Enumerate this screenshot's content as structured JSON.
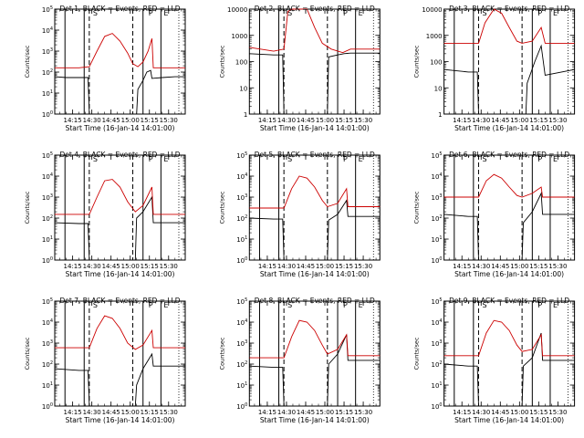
{
  "panels": [
    {
      "title": "Det 1, BLACK = Events, RED = LLD",
      "ylabel": "Counts/sec",
      "xlabel": "Start Time (16-Jan-14 14:01:00)"
    },
    {
      "title": "Det 2, BLACK = Events, RED = LLD",
      "ylabel": "Counts/sec",
      "xlabel": "Start Time (16-Jan-14 14:01:00)"
    },
    {
      "title": "Det 3, BLACK = Events, RED = LLD",
      "ylabel": "Counts/sec",
      "xlabel": "Start Time (16-Jan-14 14:01:00)"
    },
    {
      "title": "Det 4, BLACK = Events, RED = LLD",
      "ylabel": "Counts/sec",
      "xlabel": "Start Time (16-Jan-14 14:01:00)"
    },
    {
      "title": "Det 5, BLACK = Events, RED = LLD",
      "ylabel": "Counts/sec",
      "xlabel": "Start Time (16-Jan-14 14:01:00)"
    },
    {
      "title": "Det 6, BLACK = Events, RED = LLD",
      "ylabel": "Counts/sec",
      "xlabel": "Start Time (16-Jan-14 14:01:00)"
    },
    {
      "title": "Det 7, BLACK = Events, RED = LLD",
      "ylabel": "Counts/sec",
      "xlabel": "Start Time (16-Jan-14 14:01:00)"
    },
    {
      "title": "Det 8, BLACK = Events, RED = LLD",
      "ylabel": "Counts/sec",
      "xlabel": "Start Time (16-Jan-14 14:01:00)"
    },
    {
      "title": "Det 9, BLACK = Events, RED = LLD",
      "ylabel": "Counts/sec",
      "xlabel": "Start Time (16-Jan-14 14:01:00)"
    }
  ],
  "chart_data": [
    {
      "type": "line",
      "title": "Det 1, BLACK = Events, RED = LLD",
      "xlabel": "Start Time (16-Jan-14 14:01:00)",
      "ylabel": "Counts/sec",
      "xlim": [
        "14:01",
        "15:43"
      ],
      "ylim": [
        1,
        100000
      ],
      "yscale": "log",
      "xticks": [
        "14:15",
        "14:30",
        "14:45",
        "15:00",
        "15:15",
        "15:30"
      ],
      "yticks": [
        "10^0",
        "10^1",
        "10^2",
        "10^3",
        "10^4",
        "10^5"
      ],
      "annotations": [
        "S",
        "P",
        "E"
      ],
      "solid_vlines": [
        "14:09",
        "14:24",
        "15:10",
        "15:24"
      ],
      "dashed_vlines": [
        "14:28",
        "15:02"
      ],
      "dotted_vlines": [
        "15:38"
      ],
      "series": [
        {
          "name": "BLACK = Events",
          "color": "#000000",
          "x": [
            "14:01",
            "14:10",
            "14:20",
            "14:27",
            "14:28",
            "15:05",
            "15:06",
            "15:10",
            "15:13",
            "15:16",
            "15:17",
            "15:25",
            "15:35",
            "15:43"
          ],
          "y": [
            60,
            55,
            55,
            55,
            1,
            1,
            15,
            40,
            100,
            120,
            50,
            55,
            60,
            60
          ]
        },
        {
          "name": "RED = LLD",
          "color": "#cc0000",
          "x": [
            "14:01",
            "14:20",
            "14:28",
            "14:34",
            "14:40",
            "14:46",
            "14:52",
            "14:58",
            "15:02",
            "15:06",
            "15:10",
            "15:14",
            "15:17",
            "15:18",
            "15:30",
            "15:43"
          ],
          "y": [
            160,
            160,
            180,
            1000,
            5000,
            7000,
            3000,
            800,
            250,
            180,
            300,
            1000,
            4000,
            160,
            160,
            160
          ]
        }
      ]
    },
    {
      "type": "line",
      "title": "Det 2, BLACK = Events, RED = LLD",
      "xlabel": "Start Time (16-Jan-14 14:01:00)",
      "ylabel": "Counts/sec",
      "xlim": [
        "14:01",
        "15:43"
      ],
      "ylim": [
        1,
        10000
      ],
      "yscale": "log",
      "xticks": [
        "14:15",
        "14:30",
        "14:45",
        "15:00",
        "15:15",
        "15:30"
      ],
      "yticks": [
        "1",
        "10",
        "100",
        "1000",
        "10000"
      ],
      "annotations": [
        "S",
        "P",
        "E"
      ],
      "solid_vlines": [
        "14:09",
        "14:24",
        "15:10",
        "15:24"
      ],
      "dashed_vlines": [
        "14:28",
        "15:02"
      ],
      "dotted_vlines": [
        "15:38"
      ],
      "series": [
        {
          "name": "BLACK = Events",
          "color": "#000000",
          "x": [
            "14:01",
            "14:20",
            "14:27",
            "14:28",
            "15:02",
            "15:03",
            "15:10",
            "15:15",
            "15:20",
            "15:43"
          ],
          "y": [
            200,
            180,
            180,
            1,
            1,
            150,
            180,
            200,
            210,
            210
          ]
        },
        {
          "name": "RED = LLD",
          "color": "#cc0000",
          "x": [
            "14:01",
            "14:20",
            "14:28",
            "14:31",
            "14:34",
            "14:46",
            "14:52",
            "14:58",
            "15:05",
            "15:14",
            "15:20",
            "15:43"
          ],
          "y": [
            350,
            250,
            300,
            8000,
            10000,
            10000,
            2000,
            500,
            300,
            220,
            300,
            300
          ]
        }
      ]
    },
    {
      "type": "line",
      "title": "Det 3, BLACK = Events, RED = LLD",
      "xlabel": "Start Time (16-Jan-14 14:01:00)",
      "ylabel": "Counts/sec",
      "xlim": [
        "14:01",
        "15:43"
      ],
      "ylim": [
        1,
        10000
      ],
      "yscale": "log",
      "xticks": [
        "14:15",
        "14:30",
        "14:45",
        "15:00",
        "15:15",
        "15:30"
      ],
      "yticks": [
        "1",
        "10",
        "100",
        "1000",
        "10000"
      ],
      "annotations": [
        "S",
        "P",
        "E"
      ],
      "solid_vlines": [
        "14:09",
        "14:24",
        "15:10",
        "15:24"
      ],
      "dashed_vlines": [
        "14:28",
        "15:02"
      ],
      "dotted_vlines": [
        "15:38"
      ],
      "series": [
        {
          "name": "BLACK = Events",
          "color": "#000000",
          "x": [
            "14:01",
            "14:20",
            "14:27",
            "14:28",
            "15:05",
            "15:06",
            "15:12",
            "15:17",
            "15:20",
            "15:43"
          ],
          "y": [
            50,
            40,
            40,
            1,
            1,
            15,
            100,
            400,
            30,
            50
          ]
        },
        {
          "name": "RED = LLD",
          "color": "#cc0000",
          "x": [
            "14:01",
            "14:28",
            "14:33",
            "14:40",
            "14:46",
            "14:52",
            "14:58",
            "15:02",
            "15:10",
            "15:17",
            "15:20",
            "15:43"
          ],
          "y": [
            500,
            500,
            3000,
            10000,
            7000,
            2000,
            600,
            500,
            600,
            2000,
            500,
            500
          ]
        }
      ]
    },
    {
      "type": "line",
      "title": "Det 4, BLACK = Events, RED = LLD",
      "xlabel": "Start Time (16-Jan-14 14:01:00)",
      "ylabel": "Counts/sec",
      "xlim": [
        "14:01",
        "15:43"
      ],
      "ylim": [
        1,
        100000
      ],
      "yscale": "log",
      "xticks": [
        "14:15",
        "14:30",
        "14:45",
        "15:00",
        "15:15",
        "15:30"
      ],
      "yticks": [
        "10^0",
        "10^1",
        "10^2",
        "10^3",
        "10^4",
        "10^5"
      ],
      "annotations": [
        "S",
        "P",
        "E"
      ],
      "solid_vlines": [
        "14:09",
        "14:24",
        "15:10",
        "15:24"
      ],
      "dashed_vlines": [
        "14:28",
        "15:02"
      ],
      "dotted_vlines": [
        "15:38"
      ],
      "series": [
        {
          "name": "BLACK = Events",
          "color": "#000000",
          "x": [
            "14:01",
            "14:20",
            "14:27",
            "14:28",
            "15:04",
            "15:05",
            "15:10",
            "15:17",
            "15:18",
            "15:43"
          ],
          "y": [
            60,
            55,
            55,
            1,
            1,
            100,
            200,
            1000,
            60,
            60
          ]
        },
        {
          "name": "RED = LLD",
          "color": "#cc0000",
          "x": [
            "14:01",
            "14:28",
            "14:34",
            "14:40",
            "14:46",
            "14:52",
            "14:58",
            "15:04",
            "15:10",
            "15:17",
            "15:18",
            "15:43"
          ],
          "y": [
            150,
            150,
            1000,
            6000,
            7000,
            3000,
            600,
            200,
            400,
            3000,
            150,
            150
          ]
        }
      ]
    },
    {
      "type": "line",
      "title": "Det 5, BLACK = Events, RED = LLD",
      "xlabel": "Start Time (16-Jan-14 14:01:00)",
      "ylabel": "Counts/sec",
      "xlim": [
        "14:01",
        "15:43"
      ],
      "ylim": [
        1,
        100000
      ],
      "yscale": "log",
      "xticks": [
        "14:15",
        "14:30",
        "14:45",
        "15:00",
        "15:15",
        "15:30"
      ],
      "yticks": [
        "10^0",
        "10^1",
        "10^2",
        "10^3",
        "10^4",
        "10^5"
      ],
      "annotations": [
        "S",
        "P",
        "E"
      ],
      "solid_vlines": [
        "14:09",
        "14:24",
        "15:10",
        "15:24"
      ],
      "dashed_vlines": [
        "14:28",
        "15:02"
      ],
      "dotted_vlines": [
        "15:38"
      ],
      "series": [
        {
          "name": "BLACK = Events",
          "color": "#000000",
          "x": [
            "14:01",
            "14:20",
            "14:27",
            "14:28",
            "15:02",
            "15:03",
            "15:10",
            "15:17",
            "15:18",
            "15:43"
          ],
          "y": [
            100,
            90,
            90,
            1,
            1,
            80,
            150,
            700,
            120,
            120
          ]
        },
        {
          "name": "RED = LLD",
          "color": "#cc0000",
          "x": [
            "14:01",
            "14:28",
            "14:34",
            "14:40",
            "14:46",
            "14:52",
            "14:58",
            "15:02",
            "15:10",
            "15:17",
            "15:18",
            "15:43"
          ],
          "y": [
            300,
            300,
            2500,
            10000,
            8000,
            3000,
            700,
            350,
            500,
            2500,
            350,
            350
          ]
        }
      ]
    },
    {
      "type": "line",
      "title": "Det 6, BLACK = Events, RED = LLD",
      "xlabel": "Start Time (16-Jan-14 14:01:00)",
      "ylabel": "Counts/sec",
      "xlim": [
        "14:01",
        "15:43"
      ],
      "ylim": [
        1,
        100000
      ],
      "yscale": "log",
      "xticks": [
        "14:15",
        "14:30",
        "14:45",
        "15:00",
        "15:15",
        "15:30"
      ],
      "yticks": [
        "10^0",
        "10^1",
        "10^2",
        "10^3",
        "10^4",
        "10^5"
      ],
      "annotations": [
        "S",
        "P",
        "E"
      ],
      "solid_vlines": [
        "14:09",
        "14:24",
        "15:10",
        "15:24"
      ],
      "dashed_vlines": [
        "14:28",
        "15:02"
      ],
      "dotted_vlines": [
        "15:38"
      ],
      "series": [
        {
          "name": "BLACK = Events",
          "color": "#000000",
          "x": [
            "14:01",
            "14:20",
            "14:27",
            "14:28",
            "15:02",
            "15:03",
            "15:10",
            "15:17",
            "15:18",
            "15:43"
          ],
          "y": [
            150,
            120,
            120,
            1,
            1,
            60,
            200,
            1500,
            150,
            150
          ]
        },
        {
          "name": "RED = LLD",
          "color": "#cc0000",
          "x": [
            "14:01",
            "14:28",
            "14:34",
            "14:40",
            "14:46",
            "14:52",
            "14:58",
            "15:02",
            "15:10",
            "15:17",
            "15:18",
            "15:43"
          ],
          "y": [
            1000,
            1000,
            6000,
            12000,
            8000,
            3000,
            1200,
            1000,
            1500,
            3000,
            1000,
            1000
          ]
        }
      ]
    },
    {
      "type": "line",
      "title": "Det 7, BLACK = Events, RED = LLD",
      "xlabel": "Start Time (16-Jan-14 14:01:00)",
      "ylabel": "Counts/sec",
      "xlim": [
        "14:01",
        "15:43"
      ],
      "ylim": [
        1,
        100000
      ],
      "yscale": "log",
      "xticks": [
        "14:15",
        "14:30",
        "14:45",
        "15:00",
        "15:15",
        "15:30"
      ],
      "yticks": [
        "10^0",
        "10^1",
        "10^2",
        "10^3",
        "10^4",
        "10^5"
      ],
      "annotations": [
        "S",
        "P",
        "E"
      ],
      "solid_vlines": [
        "14:09",
        "14:24",
        "15:10",
        "15:24"
      ],
      "dashed_vlines": [
        "14:28",
        "15:02"
      ],
      "dotted_vlines": [
        "15:38"
      ],
      "series": [
        {
          "name": "BLACK = Events",
          "color": "#000000",
          "x": [
            "14:01",
            "14:20",
            "14:27",
            "14:28",
            "15:04",
            "15:05",
            "15:10",
            "15:17",
            "15:18",
            "15:43"
          ],
          "y": [
            60,
            50,
            50,
            1,
            1,
            10,
            60,
            300,
            80,
            80
          ]
        },
        {
          "name": "RED = LLD",
          "color": "#cc0000",
          "x": [
            "14:01",
            "14:28",
            "14:34",
            "14:40",
            "14:46",
            "14:52",
            "14:58",
            "15:04",
            "15:10",
            "15:17",
            "15:18",
            "15:43"
          ],
          "y": [
            600,
            600,
            5000,
            20000,
            15000,
            5000,
            1000,
            500,
            800,
            4000,
            600,
            600
          ]
        }
      ]
    },
    {
      "type": "line",
      "title": "Det 8, BLACK = Events, RED = LLD",
      "xlabel": "Start Time (16-Jan-14 14:01:00)",
      "ylabel": "Counts/sec",
      "xlim": [
        "14:01",
        "15:43"
      ],
      "ylim": [
        1,
        100000
      ],
      "yscale": "log",
      "xticks": [
        "14:15",
        "14:30",
        "14:45",
        "15:00",
        "15:15",
        "15:30"
      ],
      "yticks": [
        "10^0",
        "10^1",
        "10^2",
        "10^3",
        "10^4",
        "10^5"
      ],
      "annotations": [
        "S",
        "P",
        "E"
      ],
      "solid_vlines": [
        "14:09",
        "14:24",
        "15:10",
        "15:24"
      ],
      "dashed_vlines": [
        "14:28",
        "15:02"
      ],
      "dotted_vlines": [
        "15:38"
      ],
      "series": [
        {
          "name": "BLACK = Events",
          "color": "#000000",
          "x": [
            "14:01",
            "14:20",
            "14:27",
            "14:28",
            "15:02",
            "15:03",
            "15:10",
            "15:17",
            "15:18",
            "15:43"
          ],
          "y": [
            80,
            70,
            70,
            1,
            1,
            100,
            300,
            2500,
            150,
            150
          ]
        },
        {
          "name": "RED = LLD",
          "color": "#cc0000",
          "x": [
            "14:01",
            "14:28",
            "14:34",
            "14:40",
            "14:46",
            "14:52",
            "14:58",
            "15:02",
            "15:10",
            "15:17",
            "15:18",
            "15:43"
          ],
          "y": [
            200,
            200,
            2000,
            12000,
            10000,
            4000,
            800,
            300,
            500,
            2500,
            250,
            250
          ]
        }
      ]
    },
    {
      "type": "line",
      "title": "Det 9, BLACK = Events, RED = LLD",
      "xlabel": "Start Time (16-Jan-14 14:01:00)",
      "ylabel": "Counts/sec",
      "xlim": [
        "14:01",
        "15:43"
      ],
      "ylim": [
        1,
        100000
      ],
      "yscale": "log",
      "xticks": [
        "14:15",
        "14:30",
        "14:45",
        "15:00",
        "15:15",
        "15:30"
      ],
      "yticks": [
        "10^0",
        "10^1",
        "10^2",
        "10^3",
        "10^4",
        "10^5"
      ],
      "annotations": [
        "S",
        "P",
        "E"
      ],
      "solid_vlines": [
        "14:09",
        "14:24",
        "15:10",
        "15:24"
      ],
      "dashed_vlines": [
        "14:28",
        "15:02"
      ],
      "dotted_vlines": [
        "15:38"
      ],
      "series": [
        {
          "name": "BLACK = Events",
          "color": "#000000",
          "x": [
            "14:01",
            "14:20",
            "14:27",
            "14:28",
            "15:02",
            "15:03",
            "15:10",
            "15:17",
            "15:18",
            "15:43"
          ],
          "y": [
            100,
            80,
            80,
            1,
            1,
            80,
            200,
            3000,
            150,
            150
          ]
        },
        {
          "name": "RED = LLD",
          "color": "#cc0000",
          "x": [
            "14:01",
            "14:28",
            "14:34",
            "14:40",
            "14:46",
            "14:52",
            "14:58",
            "15:02",
            "15:10",
            "15:17",
            "15:18",
            "15:43"
          ],
          "y": [
            250,
            250,
            3000,
            12000,
            10000,
            4000,
            800,
            400,
            500,
            2500,
            250,
            250
          ]
        }
      ]
    }
  ]
}
